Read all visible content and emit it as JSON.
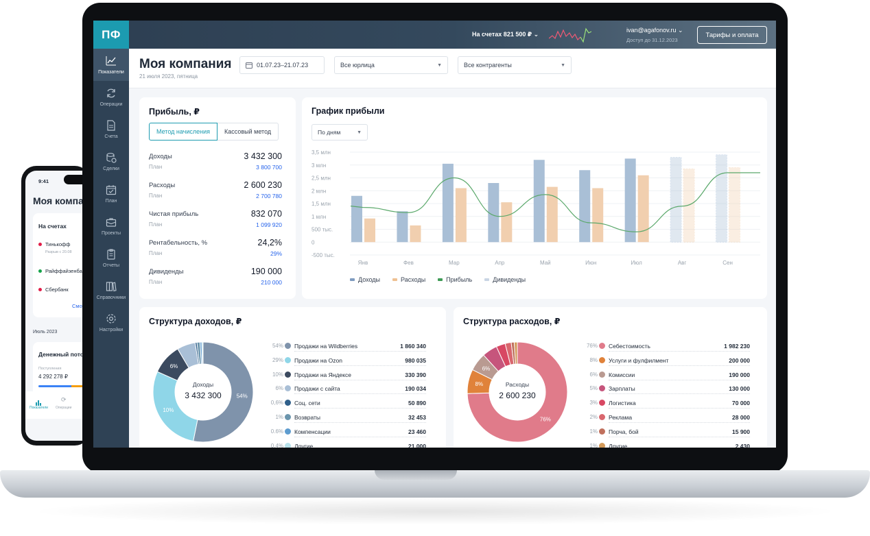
{
  "colors": {
    "accent": "#1c9bb0",
    "sidebar": "#2f4255",
    "income_bar": "#a9bfd6",
    "expense_bar": "#f1cfaf",
    "profit_line": "#5aa86a",
    "dividends": "#c9d5e4",
    "link_blue": "#2563eb"
  },
  "app": {
    "logo": "ПФ"
  },
  "sidebar": {
    "items": [
      {
        "label": "Показатели",
        "icon": "chart-line-icon",
        "active": true
      },
      {
        "label": "Операции",
        "icon": "refresh-icon"
      },
      {
        "label": "Счета",
        "icon": "document-icon"
      },
      {
        "label": "Сделки",
        "icon": "coins-icon"
      },
      {
        "label": "План",
        "icon": "calendar-check-icon"
      },
      {
        "label": "Проекты",
        "icon": "briefcase-icon"
      },
      {
        "label": "Отчеты",
        "icon": "report-icon"
      },
      {
        "label": "Справочники",
        "icon": "books-icon"
      },
      {
        "label": "Настройки",
        "icon": "gear-icon"
      }
    ]
  },
  "topbar": {
    "balance": "На счетах 821 500 ₽",
    "user_email": "ivan@agafonov.ru",
    "access": "Доступ до 31.12.2023",
    "tariff_button": "Тарифы и оплата"
  },
  "header": {
    "title": "Моя компания",
    "date": "21 июля 2023, пятница",
    "date_range": "01.07.23–21.07.23",
    "entity_filter": "Все юрлица",
    "counterparty_filter": "Все контрагенты"
  },
  "profit": {
    "title": "Прибыль, ₽",
    "methods": [
      "Метод начисления",
      "Кассовый метод"
    ],
    "plan_label": "План",
    "rows": [
      {
        "label": "Доходы",
        "value": "3 432 300",
        "plan": "3 800 700"
      },
      {
        "label": "Расходы",
        "value": "2 600 230",
        "plan": "2 700 780"
      },
      {
        "label": "Чистая прибыль",
        "value": "832 070",
        "plan": "1 099 920"
      },
      {
        "label": "Рентабельность, %",
        "value": "24,2%",
        "plan": "29%"
      },
      {
        "label": "Дивиденды",
        "value": "190 000",
        "plan": "210 000"
      }
    ]
  },
  "chart": {
    "title": "График прибыли",
    "period_select": "По дням",
    "legend": [
      "Доходы",
      "Расходы",
      "Прибыль",
      "Дивиденды"
    ]
  },
  "chart_data": {
    "type": "bar",
    "title": "График прибыли",
    "categories": [
      "Янв",
      "Фев",
      "Мар",
      "Апр",
      "Май",
      "Июн",
      "Июл",
      "Авг",
      "Сен"
    ],
    "y_tick_labels": [
      "3,5 млн",
      "3 млн",
      "2,5 млн",
      "2 млн",
      "1,5 млн",
      "1 млн",
      "500 тыс.",
      "0",
      "-500 тыс."
    ],
    "ylim": [
      -500000,
      3500000
    ],
    "grid": true,
    "legend_position": "bottom",
    "series": [
      {
        "name": "Доходы",
        "type": "bar",
        "values": [
          1800000,
          1200000,
          3050000,
          2300000,
          3200000,
          2800000,
          3250000,
          3300000,
          3400000
        ]
      },
      {
        "name": "Расходы",
        "type": "bar",
        "values": [
          920000,
          650000,
          2100000,
          1550000,
          2150000,
          2100000,
          2600000,
          2850000,
          2900000
        ]
      },
      {
        "name": "Прибыль",
        "type": "line",
        "values": [
          1350000,
          1150000,
          2500000,
          1000000,
          1850000,
          750000,
          400000,
          1400000,
          2700000
        ]
      }
    ],
    "forecast_from_index": 7
  },
  "income_structure": {
    "title": "Структура доходов, ₽",
    "center_label": "Доходы",
    "center_value": "3 432 300",
    "slice_labels": [
      "54%",
      "10%",
      "6%"
    ],
    "items": [
      {
        "pct": "54%",
        "name": "Продажи на Wildberries",
        "amount": "1 860 340",
        "color": "#7f93ab",
        "share": 54
      },
      {
        "pct": "29%",
        "name": "Продажи на  Ozon",
        "amount": "980 035",
        "color": "#8fd6e8",
        "share": 29
      },
      {
        "pct": "10%",
        "name": "Продажи на Яндексе",
        "amount": "330 390",
        "color": "#3b4a5f",
        "share": 10
      },
      {
        "pct": "6%",
        "name": "Продажи с сайта",
        "amount": "190 034",
        "color": "#a9bfd6",
        "share": 6
      },
      {
        "pct": "0,6%",
        "name": "Соц. сети",
        "amount": "50 890",
        "color": "#2f5f8a",
        "share": 0.6
      },
      {
        "pct": "1%",
        "name": "Возвраты",
        "amount": "32 453",
        "color": "#6b95ad",
        "share": 1
      },
      {
        "pct": "0.6%",
        "name": "Компенсации",
        "amount": "23 460",
        "color": "#5e9ccf",
        "share": 0.6
      },
      {
        "pct": "0.4%",
        "name": "Другие",
        "amount": "21 000",
        "color": "#b7e1ea",
        "share": 0.4
      }
    ]
  },
  "expense_structure": {
    "title": "Структура расходов, ₽",
    "center_label": "Расходы",
    "center_value": "2 600 230",
    "slice_labels": [
      "76%",
      "8%",
      "6%"
    ],
    "items": [
      {
        "pct": "76%",
        "name": "Себестоимость",
        "amount": "1 982 230",
        "color": "#e07b8a",
        "share": 76
      },
      {
        "pct": "8%",
        "name": "Услуги и фулфилмент",
        "amount": "200 000",
        "color": "#e0823a",
        "share": 8
      },
      {
        "pct": "6%",
        "name": "Комиссии",
        "amount": "190 000",
        "color": "#b99a91",
        "share": 6
      },
      {
        "pct": "5%",
        "name": "Зарплаты",
        "amount": "130 000",
        "color": "#c6557c",
        "share": 5
      },
      {
        "pct": "3%",
        "name": "Логистика",
        "amount": "70 000",
        "color": "#d84863",
        "share": 3
      },
      {
        "pct": "2%",
        "name": "Реклама",
        "amount": "28 000",
        "color": "#d9676e",
        "share": 2
      },
      {
        "pct": "1%",
        "name": "Порча, бой",
        "amount": "15 900",
        "color": "#c0705d",
        "share": 1
      },
      {
        "pct": "1%",
        "name": "Другие",
        "amount": "2 430",
        "color": "#d39a5a",
        "share": 1
      }
    ]
  },
  "phone": {
    "time": "9:41",
    "title": "Моя компания",
    "accounts_title": "На счетах",
    "banks": [
      {
        "name": "Тинькофф",
        "color": "#e11d48",
        "sub": "Разрыв с 20.08"
      },
      {
        "name": "Райффайзенбанк",
        "color": "#16a34a"
      },
      {
        "name": "Сбербанк",
        "color": "#e11d48"
      }
    ],
    "more_link": "Смотреть все",
    "month": "Июль 2023",
    "cash_title": "Денежный поток",
    "income_label": "Поступления",
    "income_value": "4 292 278 ₽",
    "tabs": [
      "Показатели",
      "Операции"
    ]
  }
}
